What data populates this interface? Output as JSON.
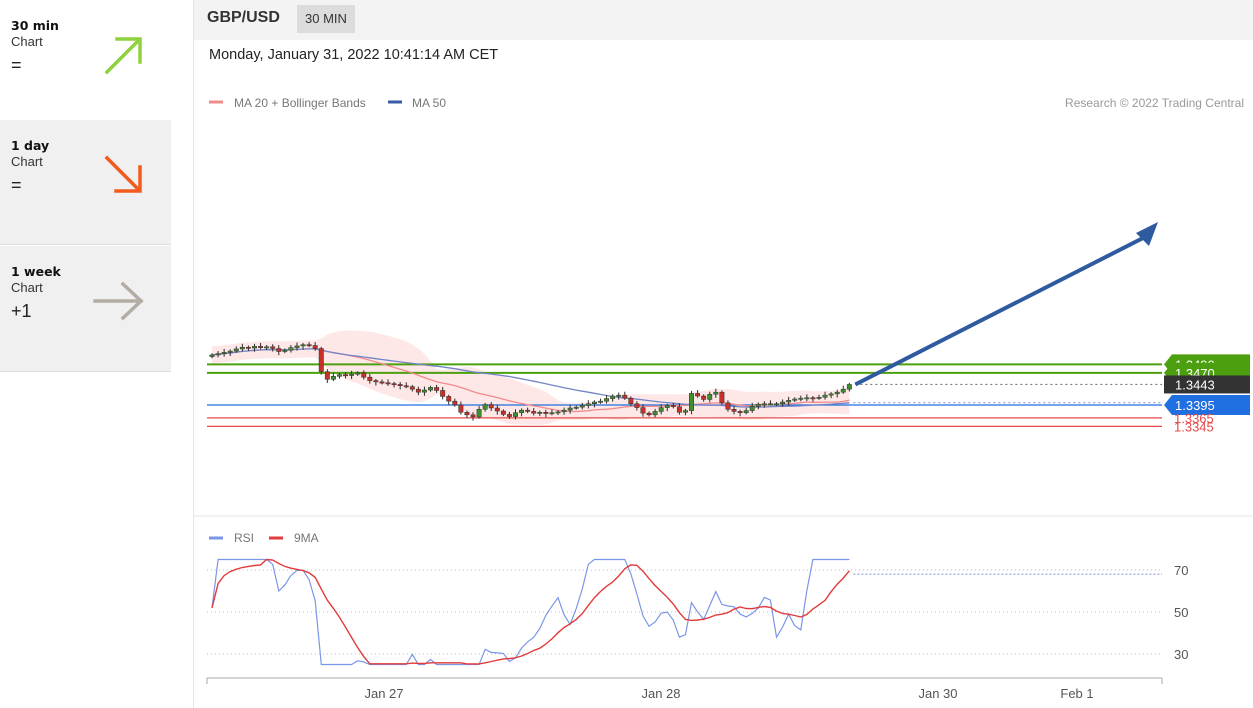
{
  "sidebar": {
    "items": [
      {
        "title": "30 min",
        "sub": "Chart",
        "value": "=",
        "arrow": "up-right-arrow-icon",
        "color": "#8fd13f"
      },
      {
        "title": "1 day",
        "sub": "Chart",
        "value": "=",
        "arrow": "down-right-arrow-icon",
        "color": "#f25a1e"
      },
      {
        "title": "1 week",
        "sub": "Chart",
        "value": "+1",
        "arrow": "right-arrow-icon",
        "color": "#b3aca4"
      }
    ]
  },
  "header": {
    "pair": "GBP/USD",
    "timeframe": "30 MIN",
    "datetime": "Monday, January 31, 2022 10:41:14 AM CET"
  },
  "chart_data": {
    "type": "candlestick",
    "legend": [
      {
        "name": "MA 20 + Bollinger Bands",
        "color": "#f28b8b"
      },
      {
        "name": "MA 50",
        "color": "#3a5aa8"
      }
    ],
    "credit": "Research © 2022 Trading Central",
    "x_tick_labels": [
      "Jan 27",
      "Jan 28",
      "Jan 30",
      "Feb 1"
    ],
    "levels": [
      {
        "value": 1.349,
        "label": "1.3490",
        "kind": "resistance",
        "color": "#4ca00f"
      },
      {
        "value": 1.347,
        "label": "1.3470",
        "kind": "resistance",
        "color": "#4ca00f"
      },
      {
        "value": 1.3443,
        "label": "1.3443",
        "kind": "last-price",
        "color": "#333333"
      },
      {
        "value": 1.3395,
        "label": "1.3395",
        "kind": "pivot",
        "color": "#1f6fe0"
      },
      {
        "value": 1.3365,
        "label": "1.3365",
        "kind": "support",
        "color": "#e64a4a"
      },
      {
        "value": 1.3345,
        "label": "1.3345",
        "kind": "support",
        "color": "#e64a4a"
      }
    ],
    "candle_colors": {
      "up": "#3f8f2c",
      "down": "#c8302a"
    },
    "bollinger_color": "#fde3e3",
    "forecast_arrow_color": "#2e5aa0",
    "closes": [
      1.3512,
      1.3515,
      1.3518,
      1.3521,
      1.3526,
      1.353,
      1.3528,
      1.3532,
      1.3529,
      1.3531,
      1.3527,
      1.352,
      1.3523,
      1.3529,
      1.3533,
      1.3536,
      1.3534,
      1.3527,
      1.3473,
      1.3455,
      1.3462,
      1.3466,
      1.3464,
      1.3467,
      1.347,
      1.346,
      1.3452,
      1.3449,
      1.3447,
      1.3445,
      1.3443,
      1.344,
      1.3438,
      1.3432,
      1.3425,
      1.343,
      1.3436,
      1.3429,
      1.3415,
      1.3404,
      1.3395,
      1.3378,
      1.3372,
      1.3367,
      1.3385,
      1.3396,
      1.3388,
      1.3381,
      1.3373,
      1.3368,
      1.3377,
      1.3383,
      1.338,
      1.3376,
      1.3378,
      1.3375,
      1.3377,
      1.3379,
      1.3383,
      1.3388,
      1.339,
      1.3394,
      1.3398,
      1.3402,
      1.3404,
      1.341,
      1.3416,
      1.3418,
      1.3411,
      1.3398,
      1.3389,
      1.3376,
      1.3372,
      1.338,
      1.3389,
      1.3394,
      1.3391,
      1.3378,
      1.3382,
      1.3422,
      1.3416,
      1.3408,
      1.342,
      1.3425,
      1.34,
      1.3385,
      1.338,
      1.3377,
      1.3382,
      1.3392,
      1.3397,
      1.3398,
      1.3398,
      1.3398,
      1.3402,
      1.3406,
      1.3409,
      1.3411,
      1.3412,
      1.3411,
      1.3413,
      1.3418,
      1.3421,
      1.3425,
      1.3432,
      1.3443
    ],
    "rsi": {
      "legend": [
        {
          "name": "RSI",
          "color": "#7b96e6"
        },
        {
          "name": "9MA",
          "color": "#e23b3b"
        }
      ],
      "levels": [
        70,
        50,
        30
      ],
      "last": 68
    }
  }
}
